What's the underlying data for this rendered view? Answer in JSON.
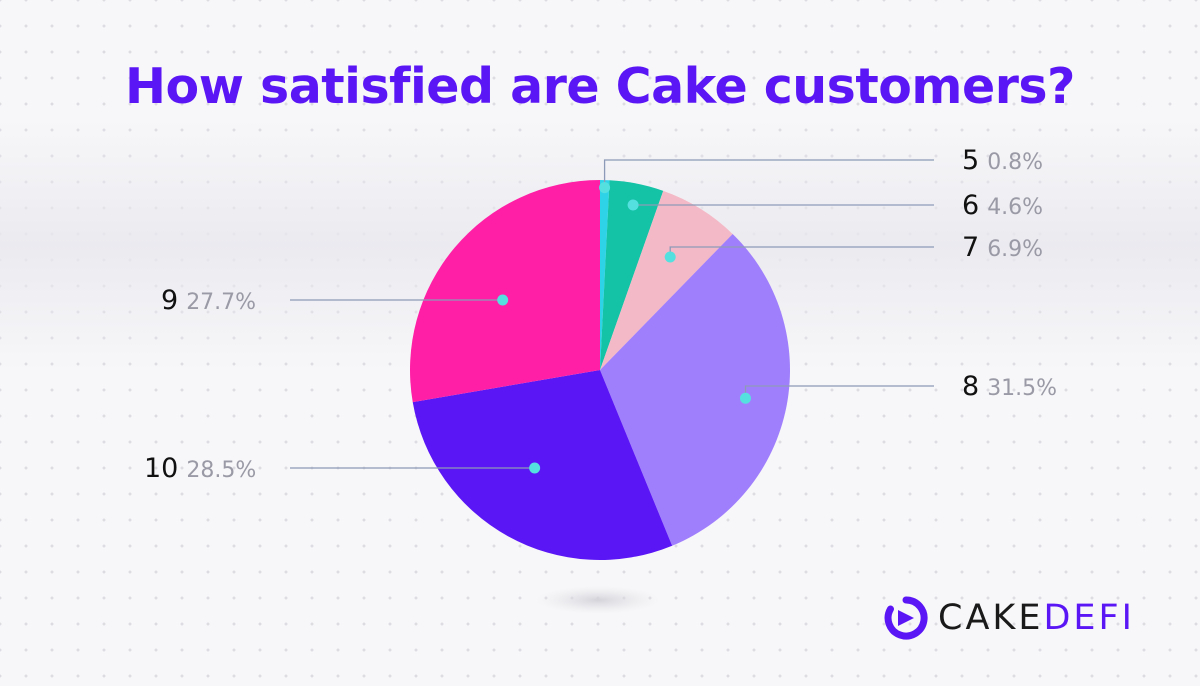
{
  "title": "How satisfied are Cake customers?",
  "logo": {
    "text_part1": "CAKE",
    "text_part2": "DEFI"
  },
  "colors": {
    "title": "#5b16f5",
    "leader_line": "#8c9ab8",
    "marker": "#55e0e0",
    "logo_accent": "#5b16f5"
  },
  "chart_data": {
    "type": "pie",
    "title": "How satisfied are Cake customers?",
    "slices": [
      {
        "label": "5",
        "percent_label": "0.8%",
        "value": 0.8,
        "color": "#2fd3e8"
      },
      {
        "label": "6",
        "percent_label": "4.6%",
        "value": 4.6,
        "color": "#14c2a6"
      },
      {
        "label": "7",
        "percent_label": "6.9%",
        "value": 6.9,
        "color": "#f4b9c6"
      },
      {
        "label": "8",
        "percent_label": "31.5%",
        "value": 31.5,
        "color": "#a07ffc"
      },
      {
        "label": "10",
        "percent_label": "28.5%",
        "value": 28.5,
        "color": "#5b16f5"
      },
      {
        "label": "9",
        "percent_label": "27.7%",
        "value": 27.7,
        "color": "#ff1fa6"
      }
    ]
  }
}
